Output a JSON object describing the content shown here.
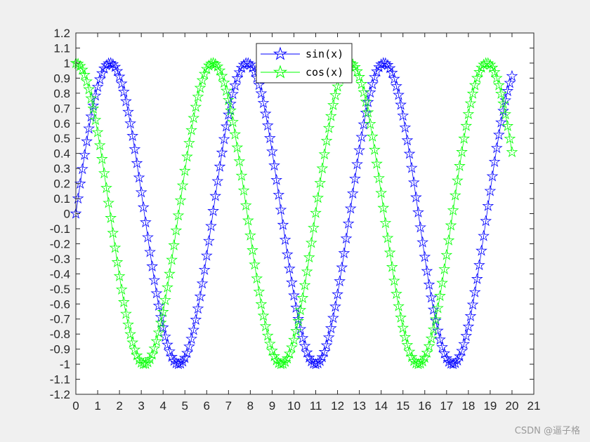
{
  "chart_data": {
    "type": "line",
    "title": "",
    "xlabel": "",
    "ylabel": "",
    "xlim": [
      0,
      21
    ],
    "ylim": [
      -1.2,
      1.2
    ],
    "x_ticks": [
      0,
      1,
      2,
      3,
      4,
      5,
      6,
      7,
      8,
      9,
      10,
      11,
      12,
      13,
      14,
      15,
      16,
      17,
      18,
      19,
      20,
      21
    ],
    "y_ticks": [
      -1.2,
      -1.1,
      -1,
      -0.9,
      -0.8,
      -0.7,
      -0.6,
      -0.5,
      -0.4,
      -0.3,
      -0.2,
      -0.1,
      0,
      0.1,
      0.2,
      0.3,
      0.4,
      0.5,
      0.6,
      0.7,
      0.8,
      0.9,
      1,
      1.1,
      1.2
    ],
    "x_start": 0,
    "x_step": 0.1,
    "x_count": 201,
    "grid": false,
    "marker": "pentagram",
    "legend_position": "top-center",
    "series": [
      {
        "name": "sin(x)",
        "function": "sin",
        "color": "#0000ff"
      },
      {
        "name": "cos(x)",
        "function": "cos",
        "color": "#00ff00"
      }
    ]
  },
  "watermark": "CSDN @逼子格"
}
